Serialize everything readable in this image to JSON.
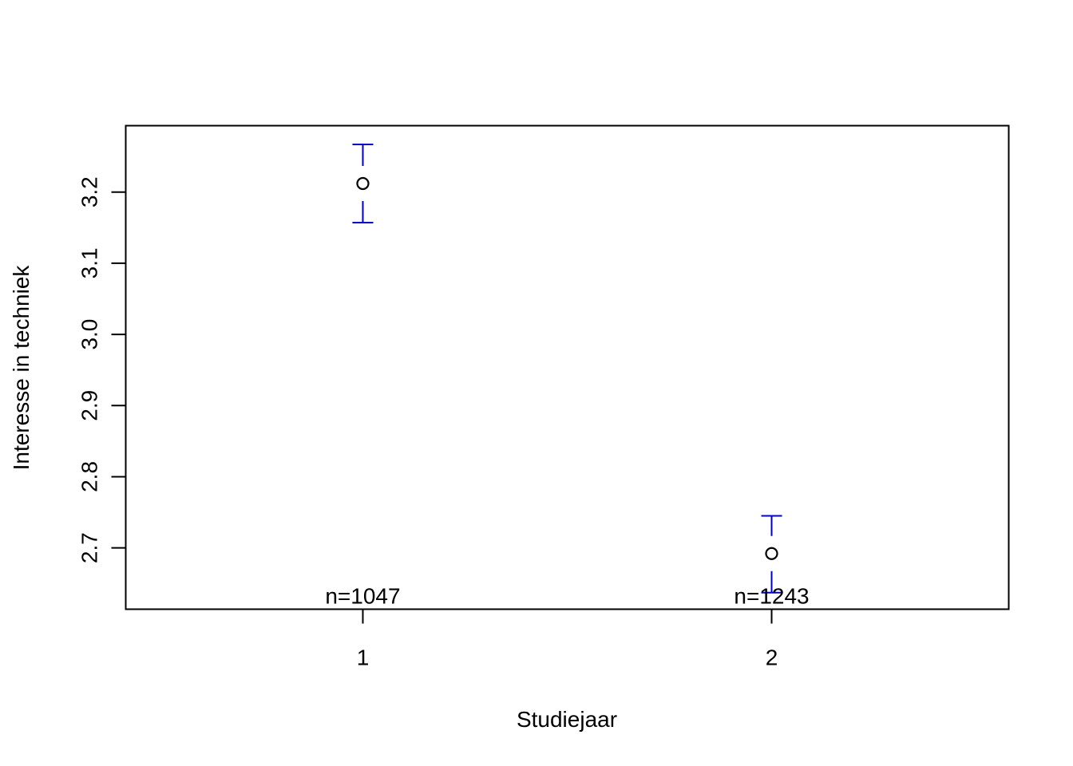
{
  "chart_data": {
    "type": "scatter",
    "title": "",
    "xlabel": "Studiejaar",
    "ylabel": "Interesse in techniek",
    "xlim": [
      0.42,
      2.58
    ],
    "ylim": [
      2.6138,
      3.2933
    ],
    "x_ticks": [
      {
        "value": 1,
        "label": "1"
      },
      {
        "value": 2,
        "label": "2"
      }
    ],
    "y_ticks": [
      {
        "value": 2.7,
        "label": "2.7"
      },
      {
        "value": 2.8,
        "label": "2.8"
      },
      {
        "value": 2.9,
        "label": "2.9"
      },
      {
        "value": 3.0,
        "label": "3.0"
      },
      {
        "value": 3.1,
        "label": "3.1"
      },
      {
        "value": 3.2,
        "label": "3.2"
      }
    ],
    "points": [
      {
        "x": 1,
        "mean": 3.212,
        "lower": 3.157,
        "upper": 3.267,
        "n_label": "n=1047"
      },
      {
        "x": 2,
        "mean": 2.692,
        "lower": 2.637,
        "upper": 2.745,
        "n_label": "n=1243"
      }
    ],
    "error_bar_color": "#0000cd",
    "point_color": "#000000",
    "grid": false,
    "legend": "none"
  }
}
